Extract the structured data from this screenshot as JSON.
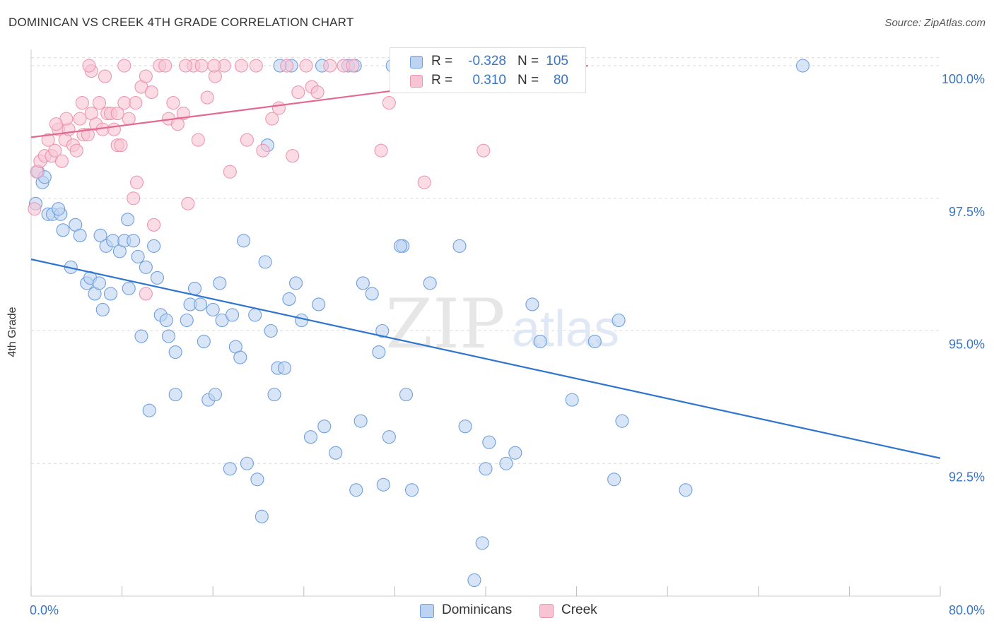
{
  "title": "DOMINICAN VS CREEK 4TH GRADE CORRELATION CHART",
  "source": "Source: ZipAtlas.com",
  "watermark": {
    "zip": "ZIP",
    "atlas": "atlas"
  },
  "legend_top": {
    "rows": [
      {
        "r_label": "R =",
        "r_value": "-0.328",
        "n_label": "N =",
        "n_value": "105"
      },
      {
        "r_label": "R =",
        "r_value": "0.310",
        "n_label": "N =",
        "n_value": "80"
      }
    ]
  },
  "legend_bottom": [
    "Dominicans",
    "Creek"
  ],
  "colors": {
    "blue_fill": "#bcd3f2",
    "blue_stroke": "#6f9fe0",
    "blue_line": "#2f74cf",
    "pink_fill": "#f8c4d4",
    "pink_stroke": "#ee95b2",
    "pink_line": "#e3698f",
    "tick_text": "#3a76c4",
    "grid": "#d9d9d9"
  },
  "chart_data": {
    "type": "scatter",
    "title": "DOMINICAN VS CREEK 4TH GRADE CORRELATION CHART",
    "xlabel": "",
    "ylabel": "4th Grade",
    "xlim": [
      0,
      80
    ],
    "ylim": [
      90.0,
      100.2
    ],
    "x_tick_labels": [
      "0.0%",
      "80.0%"
    ],
    "y_ticks": [
      92.5,
      95.0,
      97.5,
      100.0
    ],
    "y_tick_labels": [
      "92.5%",
      "95.0%",
      "97.5%",
      "100.0%"
    ],
    "grid": true,
    "series": [
      {
        "name": "Dominicans",
        "r": -0.328,
        "n": 105,
        "trend": {
          "x": [
            0,
            80
          ],
          "y": [
            96.35,
            92.6
          ]
        },
        "points": [
          [
            0.4,
            97.4
          ],
          [
            0.6,
            98.0
          ],
          [
            1.0,
            97.8
          ],
          [
            1.2,
            97.9
          ],
          [
            1.5,
            97.2
          ],
          [
            1.9,
            97.2
          ],
          [
            2.6,
            97.2
          ],
          [
            2.4,
            97.3
          ],
          [
            2.8,
            96.9
          ],
          [
            3.9,
            97.0
          ],
          [
            4.3,
            96.8
          ],
          [
            3.5,
            96.2
          ],
          [
            4.9,
            95.9
          ],
          [
            5.6,
            95.7
          ],
          [
            6.1,
            96.8
          ],
          [
            6.6,
            96.6
          ],
          [
            7.2,
            96.7
          ],
          [
            7.8,
            96.5
          ],
          [
            8.2,
            96.7
          ],
          [
            8.5,
            97.1
          ],
          [
            9.0,
            96.7
          ],
          [
            9.4,
            96.4
          ],
          [
            10.1,
            96.2
          ],
          [
            10.8,
            96.6
          ],
          [
            11.1,
            96.0
          ],
          [
            5.2,
            96.0
          ],
          [
            6.0,
            95.9
          ],
          [
            7.0,
            95.7
          ],
          [
            6.3,
            95.4
          ],
          [
            8.6,
            95.8
          ],
          [
            9.7,
            94.9
          ],
          [
            11.4,
            95.3
          ],
          [
            11.9,
            95.2
          ],
          [
            12.1,
            94.9
          ],
          [
            12.7,
            94.6
          ],
          [
            13.7,
            95.2
          ],
          [
            14.0,
            95.5
          ],
          [
            14.4,
            95.8
          ],
          [
            14.9,
            95.5
          ],
          [
            15.2,
            94.8
          ],
          [
            15.6,
            93.7
          ],
          [
            16.0,
            95.4
          ],
          [
            16.6,
            95.9
          ],
          [
            16.8,
            95.2
          ],
          [
            17.7,
            95.3
          ],
          [
            18.0,
            94.7
          ],
          [
            18.4,
            94.5
          ],
          [
            16.2,
            93.8
          ],
          [
            12.7,
            93.8
          ],
          [
            10.4,
            93.5
          ],
          [
            18.7,
            96.7
          ],
          [
            19.7,
            95.3
          ],
          [
            20.6,
            96.3
          ],
          [
            21.1,
            95.0
          ],
          [
            20.8,
            98.5
          ],
          [
            21.7,
            94.3
          ],
          [
            22.3,
            94.3
          ],
          [
            21.4,
            93.8
          ],
          [
            22.7,
            95.6
          ],
          [
            23.3,
            95.9
          ],
          [
            23.8,
            95.2
          ],
          [
            24.6,
            93.0
          ],
          [
            25.3,
            95.5
          ],
          [
            25.8,
            93.2
          ],
          [
            26.8,
            92.7
          ],
          [
            29.2,
            95.9
          ],
          [
            29.0,
            93.3
          ],
          [
            28.6,
            92.0
          ],
          [
            30.0,
            95.7
          ],
          [
            30.9,
            95.0
          ],
          [
            30.6,
            94.6
          ],
          [
            31.5,
            93.0
          ],
          [
            31.0,
            92.1
          ],
          [
            32.7,
            96.6
          ],
          [
            32.5,
            96.6
          ],
          [
            33.0,
            93.8
          ],
          [
            33.5,
            92.0
          ],
          [
            35.1,
            95.9
          ],
          [
            37.7,
            96.6
          ],
          [
            38.2,
            93.2
          ],
          [
            40.3,
            92.9
          ],
          [
            40.0,
            92.4
          ],
          [
            41.8,
            92.5
          ],
          [
            42.6,
            92.7
          ],
          [
            44.1,
            95.5
          ],
          [
            44.8,
            94.8
          ],
          [
            47.6,
            93.7
          ],
          [
            49.6,
            94.8
          ],
          [
            51.7,
            95.2
          ],
          [
            52.0,
            93.3
          ],
          [
            51.3,
            92.2
          ],
          [
            57.6,
            92.0
          ],
          [
            39.7,
            91.0
          ],
          [
            39.0,
            90.3
          ],
          [
            17.5,
            92.4
          ],
          [
            19.0,
            92.5
          ],
          [
            19.9,
            92.2
          ],
          [
            20.3,
            91.5
          ],
          [
            27.9,
            100.0
          ],
          [
            21.9,
            100.0
          ],
          [
            22.9,
            100.0
          ],
          [
            25.6,
            100.0
          ],
          [
            28.5,
            100.0
          ],
          [
            31.8,
            100.0
          ],
          [
            67.9,
            100.0
          ]
        ]
      },
      {
        "name": "Creek",
        "r": 0.31,
        "n": 80,
        "trend": {
          "x": [
            0,
            49
          ],
          "y": [
            98.65,
            100.0
          ]
        },
        "points": [
          [
            0.3,
            97.3
          ],
          [
            0.5,
            98.0
          ],
          [
            0.8,
            98.2
          ],
          [
            1.2,
            98.3
          ],
          [
            1.5,
            98.6
          ],
          [
            1.8,
            98.3
          ],
          [
            2.1,
            98.4
          ],
          [
            2.4,
            98.8
          ],
          [
            2.7,
            98.2
          ],
          [
            3.0,
            98.6
          ],
          [
            3.3,
            98.8
          ],
          [
            3.7,
            98.5
          ],
          [
            4.0,
            98.4
          ],
          [
            4.3,
            99.0
          ],
          [
            4.6,
            98.7
          ],
          [
            5.0,
            98.7
          ],
          [
            5.3,
            99.1
          ],
          [
            5.7,
            98.9
          ],
          [
            6.0,
            99.3
          ],
          [
            6.3,
            98.8
          ],
          [
            6.7,
            99.1
          ],
          [
            7.0,
            99.1
          ],
          [
            7.3,
            98.8
          ],
          [
            7.6,
            98.5
          ],
          [
            7.9,
            98.5
          ],
          [
            8.2,
            99.3
          ],
          [
            8.6,
            99.0
          ],
          [
            9.0,
            97.5
          ],
          [
            9.3,
            97.8
          ],
          [
            9.7,
            99.6
          ],
          [
            10.1,
            99.8
          ],
          [
            10.6,
            99.5
          ],
          [
            10.8,
            97.0
          ],
          [
            11.3,
            100.0
          ],
          [
            12.1,
            99.0
          ],
          [
            12.5,
            99.3
          ],
          [
            12.9,
            98.9
          ],
          [
            13.4,
            99.1
          ],
          [
            13.8,
            97.4
          ],
          [
            14.3,
            100.0
          ],
          [
            14.7,
            98.6
          ],
          [
            15.0,
            100.0
          ],
          [
            15.5,
            99.4
          ],
          [
            16.2,
            99.8
          ],
          [
            17.0,
            100.0
          ],
          [
            17.5,
            98.0
          ],
          [
            18.5,
            100.0
          ],
          [
            19.0,
            98.6
          ],
          [
            19.8,
            100.0
          ],
          [
            20.4,
            98.4
          ],
          [
            21.2,
            99.0
          ],
          [
            21.8,
            99.2
          ],
          [
            22.5,
            100.0
          ],
          [
            23.0,
            98.3
          ],
          [
            23.5,
            99.5
          ],
          [
            24.2,
            100.0
          ],
          [
            24.7,
            99.6
          ],
          [
            25.2,
            99.5
          ],
          [
            26.3,
            100.0
          ],
          [
            27.5,
            100.0
          ],
          [
            28.3,
            100.0
          ],
          [
            30.8,
            98.4
          ],
          [
            31.5,
            99.3
          ],
          [
            34.6,
            97.8
          ],
          [
            39.8,
            98.4
          ],
          [
            42.2,
            100.0
          ],
          [
            47.1,
            100.0
          ],
          [
            6.5,
            99.8
          ],
          [
            9.2,
            99.3
          ],
          [
            5.3,
            99.9
          ],
          [
            10.1,
            95.7
          ],
          [
            11.8,
            100.0
          ],
          [
            13.6,
            100.0
          ],
          [
            16.1,
            100.0
          ],
          [
            8.2,
            100.0
          ],
          [
            5.1,
            100.0
          ],
          [
            3.1,
            99.0
          ],
          [
            2.2,
            98.9
          ],
          [
            4.5,
            99.3
          ],
          [
            7.6,
            99.1
          ]
        ]
      }
    ]
  }
}
